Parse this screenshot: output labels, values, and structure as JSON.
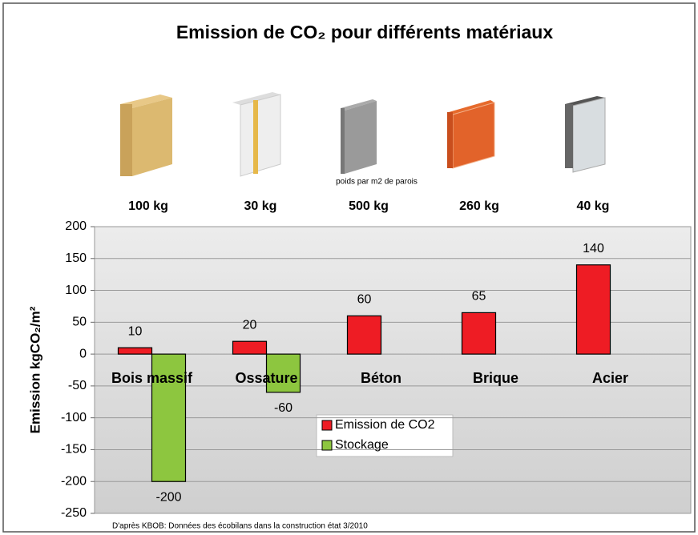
{
  "chart_data": {
    "type": "bar",
    "title": "Emission de CO₂ pour différents matériaux",
    "y_label": "Emission kgCO₂/m²",
    "annotation": "poids par m2 de parois",
    "weights": [
      "100 kg",
      "30 kg",
      "500 kg",
      "260 kg",
      "40 kg"
    ],
    "source": "D'après KBOB: Données des écobilans dans la construction état 3/2010",
    "categories": [
      "Bois massif",
      "Ossature",
      "Béton",
      "Brique",
      "Acier"
    ],
    "series": [
      {
        "name": "Emission de CO2",
        "color": "#ee1c24",
        "values": [
          10,
          20,
          60,
          65,
          140
        ]
      },
      {
        "name": "Stockage",
        "color": "#8dc63f",
        "values": [
          -200,
          -60,
          null,
          null,
          null
        ]
      }
    ],
    "ylim": [
      -250,
      200
    ],
    "yticks": [
      -250,
      -200,
      -150,
      -100,
      -50,
      0,
      50,
      100,
      150,
      200
    ],
    "grid": true
  }
}
